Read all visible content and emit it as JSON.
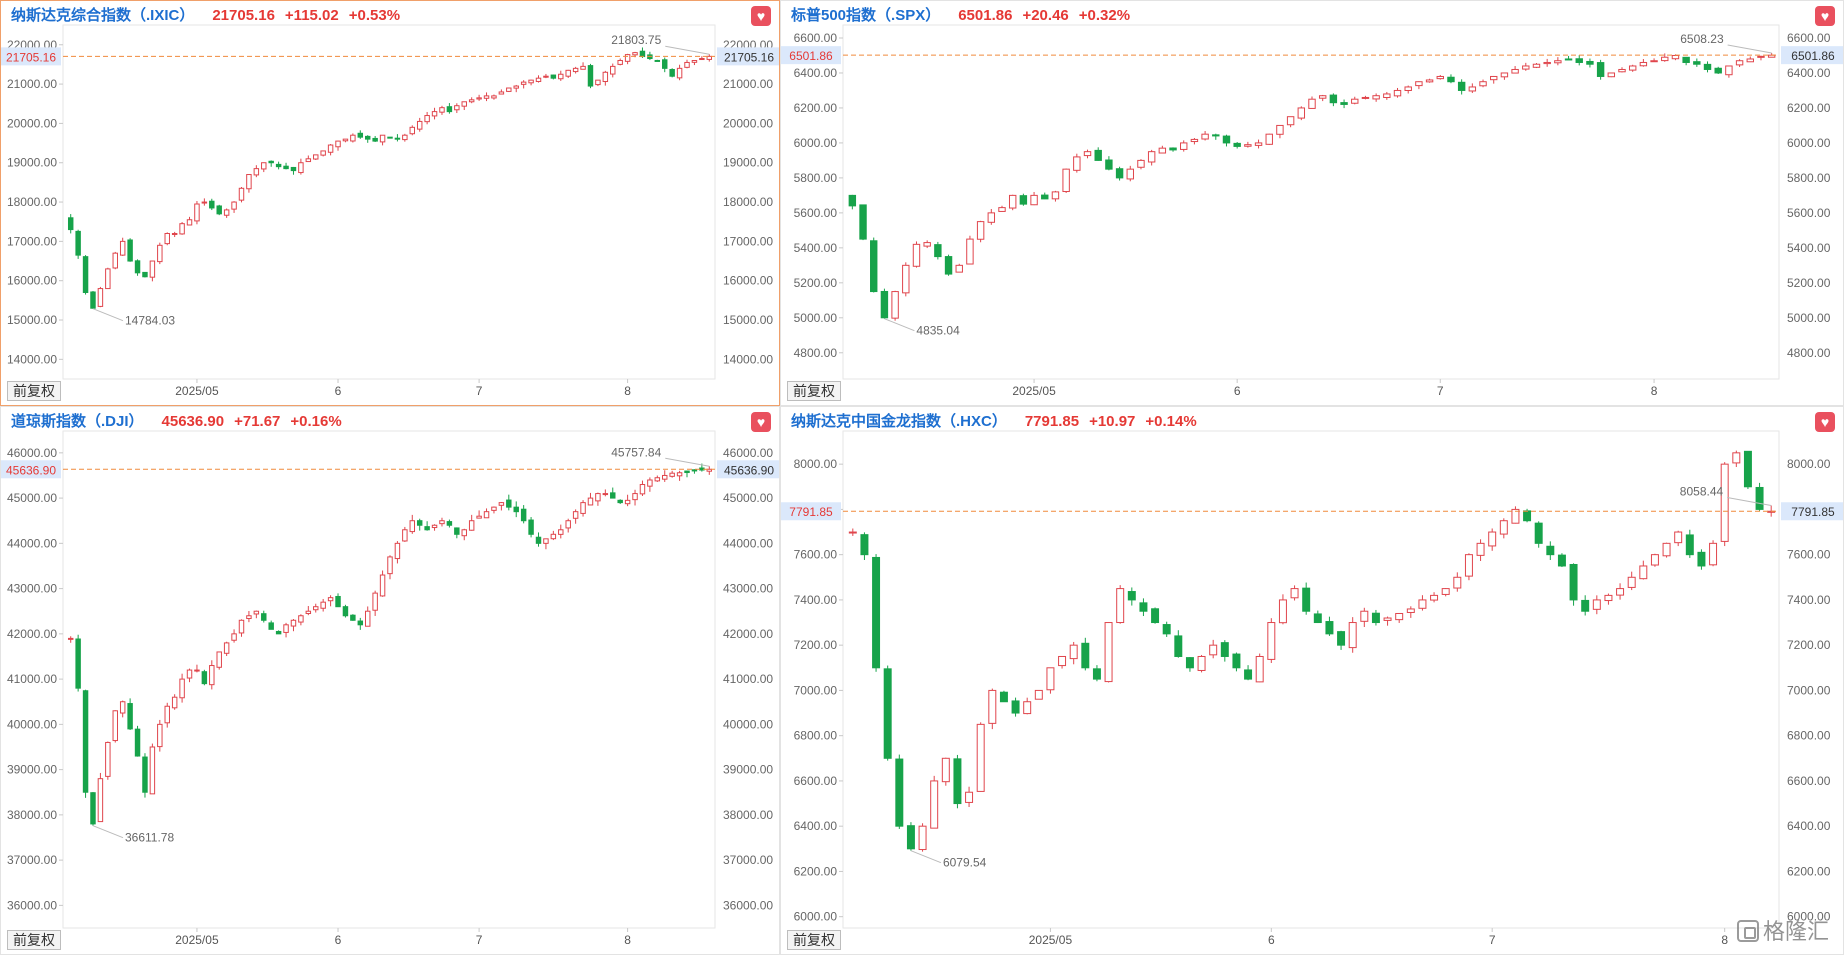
{
  "panels": [
    {
      "id": "ixic",
      "name": "纳斯达克综合指数（.IXIC）",
      "last": "21705.16",
      "change": "+115.02",
      "pct": "+0.53%",
      "adj_label": "前复权",
      "active": true,
      "chart_data": {
        "type": "candlestick",
        "y_ticks": [
          14000,
          15000,
          16000,
          17000,
          18000,
          19000,
          20000,
          21000,
          22000
        ],
        "y_tick_labels": [
          "14000.00",
          "15000.00",
          "16000.00",
          "17000.00",
          "18000.00",
          "19000.00",
          "20000.00",
          "21000.00",
          "22000.00"
        ],
        "ylim": [
          13500,
          22350
        ],
        "x_labels": [
          "2025/05",
          "6",
          "7",
          "8"
        ],
        "x_label_index": [
          17,
          36,
          55,
          75
        ],
        "current_value": 21705.16,
        "current_label": "21705.16",
        "high_label": "21803.75",
        "high_index": 86,
        "low_label": "14784.03",
        "low_index": 3,
        "base": 17600,
        "pts": [
          17300,
          16650,
          15700,
          15300,
          15800,
          16300,
          16700,
          17000,
          16500,
          16200,
          16100,
          16500,
          16900,
          17200,
          17200,
          17450,
          17550,
          17950,
          18000,
          17850,
          17700,
          17800,
          18000,
          18350,
          18700,
          18850,
          19000,
          19000,
          18900,
          18850,
          18800,
          19000,
          19100,
          19200,
          19300,
          19450,
          19550,
          19600,
          19700,
          19650,
          19600,
          19550,
          19700,
          19650,
          19600,
          19700,
          19900,
          20050,
          20200,
          20300,
          20400,
          20300,
          20450,
          20550,
          20600,
          20650,
          20700,
          20700,
          20800,
          20900,
          20950,
          21050,
          21100,
          21150,
          21200,
          21150,
          21250,
          21350,
          21400,
          21450,
          20950,
          21100,
          21300,
          21450,
          21600,
          21750,
          21800,
          21700,
          21650,
          21600,
          21400,
          21200,
          21400,
          21550,
          21600,
          21650,
          21705.16
        ]
      }
    },
    {
      "id": "spx",
      "name": "标普500指数（.SPX）",
      "last": "6501.86",
      "change": "+20.46",
      "pct": "+0.32%",
      "adj_label": "前复权",
      "active": false,
      "chart_data": {
        "type": "candlestick",
        "y_ticks": [
          4800,
          5000,
          5200,
          5400,
          5600,
          5800,
          6000,
          6200,
          6400,
          6600
        ],
        "y_tick_labels": [
          "4800.00",
          "5000.00",
          "5200.00",
          "5400.00",
          "5600.00",
          "5800.00",
          "6000.00",
          "6200.00",
          "6400.00",
          "6600.00"
        ],
        "ylim": [
          4650,
          6640
        ],
        "x_labels": [
          "2025/05",
          "6",
          "7",
          "8"
        ],
        "x_label_index": [
          17,
          36,
          55,
          75
        ],
        "current_value": 6501.86,
        "current_label": "6501.86",
        "high_label": "6508.23",
        "high_index": 86,
        "low_label": "4835.04",
        "low_index": 3,
        "base": 5700,
        "pts": [
          5640,
          5450,
          5150,
          5000,
          5150,
          5300,
          5420,
          5430,
          5350,
          5250,
          5300,
          5450,
          5550,
          5600,
          5630,
          5700,
          5650,
          5700,
          5680,
          5720,
          5850,
          5920,
          5950,
          5900,
          5850,
          5800,
          5850,
          5900,
          5950,
          5970,
          5960,
          6000,
          6020,
          6050,
          6040,
          6000,
          5980,
          5990,
          6000,
          6050,
          6100,
          6150,
          6200,
          6250,
          6270,
          6230,
          6220,
          6250,
          6260,
          6270,
          6280,
          6300,
          6320,
          6350,
          6360,
          6380,
          6350,
          6300,
          6320,
          6350,
          6380,
          6400,
          6420,
          6440,
          6450,
          6460,
          6470,
          6480,
          6460,
          6450,
          6380,
          6400,
          6420,
          6440,
          6460,
          6470,
          6490,
          6500,
          6460,
          6450,
          6420,
          6400,
          6440,
          6470,
          6480,
          6495,
          6501.86
        ]
      }
    },
    {
      "id": "dji",
      "name": "道琼斯指数（.DJI）",
      "last": "45636.90",
      "change": "+71.67",
      "pct": "+0.16%",
      "adj_label": "前复权",
      "active": false,
      "chart_data": {
        "type": "candlestick",
        "y_ticks": [
          36000,
          37000,
          38000,
          39000,
          40000,
          41000,
          42000,
          43000,
          44000,
          45000,
          46000
        ],
        "y_tick_labels": [
          "36000.00",
          "37000.00",
          "38000.00",
          "39000.00",
          "40000.00",
          "41000.00",
          "42000.00",
          "43000.00",
          "44000.00",
          "45000.00",
          "46000.00"
        ],
        "ylim": [
          35500,
          46350
        ],
        "x_labels": [
          "2025/05",
          "6",
          "7",
          "8"
        ],
        "x_label_index": [
          17,
          36,
          55,
          75
        ],
        "current_value": 45636.9,
        "current_label": "45636.90",
        "high_label": "45757.84",
        "high_index": 86,
        "low_label": "36611.78",
        "low_index": 3,
        "base": 41900,
        "pts": [
          41900,
          40800,
          38500,
          37800,
          38800,
          39600,
          40300,
          40500,
          39900,
          39300,
          38500,
          39500,
          40000,
          40400,
          40600,
          41000,
          41200,
          41200,
          40900,
          41300,
          41600,
          41800,
          42000,
          42300,
          42400,
          42500,
          42300,
          42100,
          42000,
          42200,
          42300,
          42400,
          42500,
          42600,
          42700,
          42800,
          42600,
          42400,
          42300,
          42200,
          42500,
          42900,
          43300,
          43700,
          44000,
          44300,
          44500,
          44400,
          44300,
          44400,
          44500,
          44400,
          44200,
          44300,
          44500,
          44600,
          44700,
          44800,
          44900,
          44800,
          44700,
          44500,
          44200,
          44000,
          44100,
          44200,
          44300,
          44500,
          44700,
          44900,
          45000,
          45100,
          45100,
          45000,
          44900,
          44950,
          45100,
          45300,
          45400,
          45450,
          45500,
          45550,
          45560,
          45565,
          45600,
          45620,
          45636.9
        ]
      }
    },
    {
      "id": "hxc",
      "name": "纳斯达克中国金龙指数（.HXC）",
      "last": "7791.85",
      "change": "+10.97",
      "pct": "+0.14%",
      "adj_label": "前复权",
      "active": false,
      "chart_data": {
        "type": "candlestick",
        "y_ticks": [
          6000,
          6200,
          6400,
          6600,
          6800,
          7000,
          7200,
          7400,
          7600,
          7800,
          8000
        ],
        "y_tick_labels": [
          "6000.00",
          "6200.00",
          "6400.00",
          "6600.00",
          "6800.00",
          "7000.00",
          "7200.00",
          "7400.00",
          "7600.00",
          "7800.00",
          "8000.00"
        ],
        "ylim": [
          5950,
          8120
        ],
        "x_labels": [
          "2025/05",
          "6",
          "7",
          "8"
        ],
        "x_label_index": [
          17,
          36,
          55,
          75
        ],
        "current_value": 7791.85,
        "current_label": "7791.85",
        "high_label": "8058.44",
        "high_index": 82,
        "low_label": "6079.54",
        "low_index": 5,
        "base": 7700,
        "pts": [
          7700,
          7600,
          7100,
          6700,
          6400,
          6300,
          6400,
          6600,
          6700,
          6500,
          6550,
          6850,
          7000,
          6950,
          6900,
          6950,
          7000,
          7100,
          7150,
          7200,
          7100,
          7050,
          7300,
          7450,
          7400,
          7350,
          7300,
          7250,
          7150,
          7100,
          7150,
          7200,
          7150,
          7100,
          7050,
          7150,
          7300,
          7400,
          7450,
          7350,
          7300,
          7250,
          7200,
          7300,
          7350,
          7300,
          7320,
          7340,
          7360,
          7400,
          7420,
          7450,
          7500,
          7600,
          7650,
          7700,
          7750,
          7800,
          7750,
          7650,
          7600,
          7550,
          7400,
          7350,
          7400,
          7420,
          7450,
          7500,
          7550,
          7600,
          7650,
          7700,
          7600,
          7550,
          7650,
          8000,
          8050,
          7900,
          7800,
          7791.85
        ]
      }
    }
  ],
  "watermark": "格隆汇"
}
